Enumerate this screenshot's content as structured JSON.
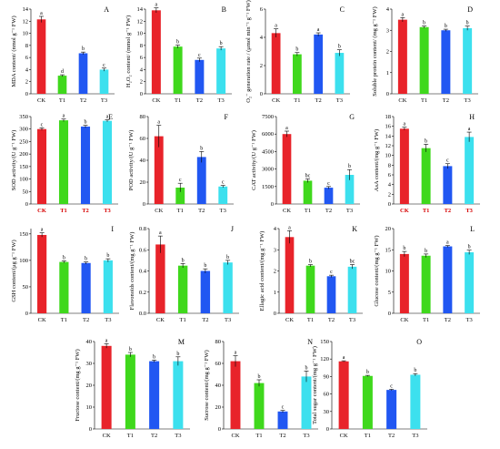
{
  "categories": [
    "CK",
    "T1",
    "T2",
    "T3"
  ],
  "series_colors": [
    "#e8232a",
    "#3fd81c",
    "#2157f2",
    "#3ce0ee"
  ],
  "highlight_color": "#d60000",
  "chart_data": [
    {
      "panel": "A",
      "type": "bar",
      "ylabel": "MDA content/ (nmol g⁻¹ FW)",
      "categories": [
        "CK",
        "T1",
        "T2",
        "T3"
      ],
      "values": [
        12.3,
        3.0,
        6.7,
        4.0
      ],
      "errors": [
        0.5,
        0.15,
        0.2,
        0.25
      ],
      "sig": [
        "a",
        "d",
        "b",
        "c"
      ],
      "ylim": [
        0,
        14
      ],
      "yticks": [
        0,
        2,
        4,
        6,
        8,
        10,
        12,
        14
      ]
    },
    {
      "panel": "B",
      "type": "bar",
      "ylabel": "H₂O₂ content/ (mmol g⁻¹ FW)",
      "categories": [
        "CK",
        "T1",
        "T2",
        "T3"
      ],
      "values": [
        13.8,
        7.8,
        5.6,
        7.5
      ],
      "errors": [
        0.4,
        0.25,
        0.3,
        0.3
      ],
      "sig": [
        "a",
        "b",
        "c",
        "b"
      ],
      "ylim": [
        0,
        14
      ],
      "yticks": [
        0,
        2,
        4,
        6,
        8,
        10,
        12,
        14
      ]
    },
    {
      "panel": "C",
      "type": "bar",
      "ylabel": "O₂⁻ generation rate / (μmol min⁻¹ g⁻¹ FW)",
      "categories": [
        "CK",
        "T1",
        "T2",
        "T3"
      ],
      "values": [
        4.3,
        2.8,
        4.2,
        2.9
      ],
      "errors": [
        0.3,
        0.12,
        0.12,
        0.22
      ],
      "sig": [
        "a",
        "b",
        "a",
        "b"
      ],
      "ylim": [
        0,
        6
      ],
      "yticks": [
        0,
        2,
        4,
        6
      ]
    },
    {
      "panel": "D",
      "type": "bar",
      "ylabel": "Soluble protein content/ (mg g⁻¹ FW)",
      "categories": [
        "CK",
        "T1",
        "T2",
        "T3"
      ],
      "values": [
        3.5,
        3.15,
        3.0,
        3.1
      ],
      "errors": [
        0.1,
        0.05,
        0.05,
        0.1
      ],
      "sig": [
        "a",
        "b",
        "b",
        "b"
      ],
      "ylim": [
        0,
        4
      ],
      "yticks": [
        0,
        1,
        2,
        3,
        4
      ]
    },
    {
      "panel": "E",
      "type": "bar",
      "ylabel": "SOD activity/(U g⁻¹ FW)",
      "categories": [
        "CK",
        "T1",
        "T2",
        "T3"
      ],
      "values": [
        300,
        335,
        310,
        333
      ],
      "errors": [
        5,
        5,
        5,
        4
      ],
      "sig": [
        "c",
        "a",
        "b",
        "a"
      ],
      "ylim": [
        0,
        350
      ],
      "yticks": [
        0,
        50,
        100,
        150,
        200,
        250,
        300,
        350
      ]
    },
    {
      "panel": "F",
      "type": "bar",
      "ylabel": "POD activity/(U g⁻¹ FW)",
      "categories": [
        "CK",
        "T1",
        "T2",
        "T3"
      ],
      "values": [
        62,
        15,
        43,
        16
      ],
      "errors": [
        10,
        4,
        5,
        1
      ],
      "sig": [
        "a",
        "c",
        "b",
        "c"
      ],
      "ylim": [
        0,
        80
      ],
      "yticks": [
        0,
        20,
        40,
        60,
        80
      ]
    },
    {
      "panel": "G",
      "type": "bar",
      "ylabel": "CAT activity/(U g⁻¹ FW)",
      "categories": [
        "CK",
        "T1",
        "T2",
        "T3"
      ],
      "values": [
        6000,
        2000,
        1400,
        2500
      ],
      "errors": [
        250,
        150,
        100,
        450
      ],
      "sig": [
        "a",
        "bc",
        "c",
        "b"
      ],
      "ylim": [
        0,
        7500
      ],
      "yticks": [
        0,
        1500,
        3000,
        4500,
        6000,
        7500
      ]
    },
    {
      "panel": "H",
      "type": "bar",
      "ylabel": "AsA content/(mg g⁻¹ FW)",
      "categories": [
        "CK",
        "T1",
        "T2",
        "T3"
      ],
      "values": [
        15.5,
        11.5,
        7.8,
        13.8
      ],
      "errors": [
        0.3,
        0.8,
        0.5,
        1.0
      ],
      "sig": [
        "a",
        "b",
        "c",
        "a"
      ],
      "ylim": [
        0,
        18
      ],
      "yticks": [
        0,
        2,
        4,
        6,
        8,
        10,
        12,
        14,
        16,
        18
      ]
    },
    {
      "panel": "I",
      "type": "bar",
      "ylabel": "GSH content/(μg g⁻¹ FW)",
      "categories": [
        "CK",
        "T1",
        "T2",
        "T3"
      ],
      "values": [
        148,
        97,
        95,
        100
      ],
      "errors": [
        4,
        2,
        2,
        3
      ],
      "sig": [
        "a",
        "b",
        "b",
        "b"
      ],
      "ylim": [
        0,
        160
      ],
      "yticks": [
        0,
        50,
        100,
        150
      ]
    },
    {
      "panel": "J",
      "type": "bar",
      "ylabel": "Flavonoids content/(mg g⁻¹ FW)",
      "categories": [
        "CK",
        "T1",
        "T2",
        "T3"
      ],
      "values": [
        0.65,
        0.45,
        0.4,
        0.48
      ],
      "errors": [
        0.08,
        0.02,
        0.02,
        0.02
      ],
      "sig": [
        "a",
        "b",
        "b",
        "b"
      ],
      "ylim": [
        0,
        0.8
      ],
      "yticks": [
        0.0,
        0.2,
        0.4,
        0.6,
        0.8
      ]
    },
    {
      "panel": "K",
      "type": "bar",
      "ylabel": "Ellagic acid content/(mg g⁻¹ FW)",
      "categories": [
        "CK",
        "T1",
        "T2",
        "T3"
      ],
      "values": [
        3.6,
        2.25,
        1.75,
        2.2
      ],
      "errors": [
        0.3,
        0.05,
        0.05,
        0.1
      ],
      "sig": [
        "a",
        "b",
        "c",
        "bc"
      ],
      "ylim": [
        0,
        4
      ],
      "yticks": [
        0,
        1,
        2,
        3,
        4
      ]
    },
    {
      "panel": "L",
      "type": "bar",
      "ylabel": "Glucose content/(mg g⁻¹ FW)",
      "categories": [
        "CK",
        "T1",
        "T2",
        "T3"
      ],
      "values": [
        14.0,
        13.6,
        15.8,
        14.4
      ],
      "errors": [
        0.6,
        0.4,
        0.2,
        0.5
      ],
      "sig": [
        "b",
        "b",
        "a",
        "b"
      ],
      "ylim": [
        0,
        20
      ],
      "yticks": [
        0,
        5,
        10,
        15,
        20
      ]
    },
    {
      "panel": "M",
      "type": "bar",
      "ylabel": "Fructose content/(mg g⁻¹ FW)",
      "categories": [
        "CK",
        "T1",
        "T2",
        "T3"
      ],
      "values": [
        38,
        34,
        31,
        31
      ],
      "errors": [
        1.0,
        1.0,
        0.5,
        2.0
      ],
      "sig": [
        "a",
        "b",
        "b",
        "b"
      ],
      "ylim": [
        0,
        40
      ],
      "yticks": [
        0,
        10,
        20,
        30,
        40
      ]
    },
    {
      "panel": "N",
      "type": "bar",
      "ylabel": "Sucrose content/(mg g⁻¹ FW)",
      "categories": [
        "CK",
        "T1",
        "T2",
        "T3"
      ],
      "values": [
        62,
        42,
        16,
        48
      ],
      "errors": [
        5,
        3,
        1,
        5
      ],
      "sig": [
        "a",
        "b",
        "c",
        "b"
      ],
      "ylim": [
        0,
        80
      ],
      "yticks": [
        0,
        20,
        40,
        60,
        80
      ]
    },
    {
      "panel": "O",
      "type": "bar",
      "ylabel": "Total sugar content/(mg g⁻¹ FW)",
      "categories": [
        "CK",
        "T1",
        "T2",
        "T3"
      ],
      "values": [
        116,
        91,
        67,
        93
      ],
      "errors": [
        1,
        1,
        1,
        2
      ],
      "sig": [
        "a",
        "b",
        "c",
        "b"
      ],
      "ylim": [
        0,
        150
      ],
      "yticks": [
        0,
        30,
        60,
        90,
        120,
        150
      ]
    }
  ]
}
